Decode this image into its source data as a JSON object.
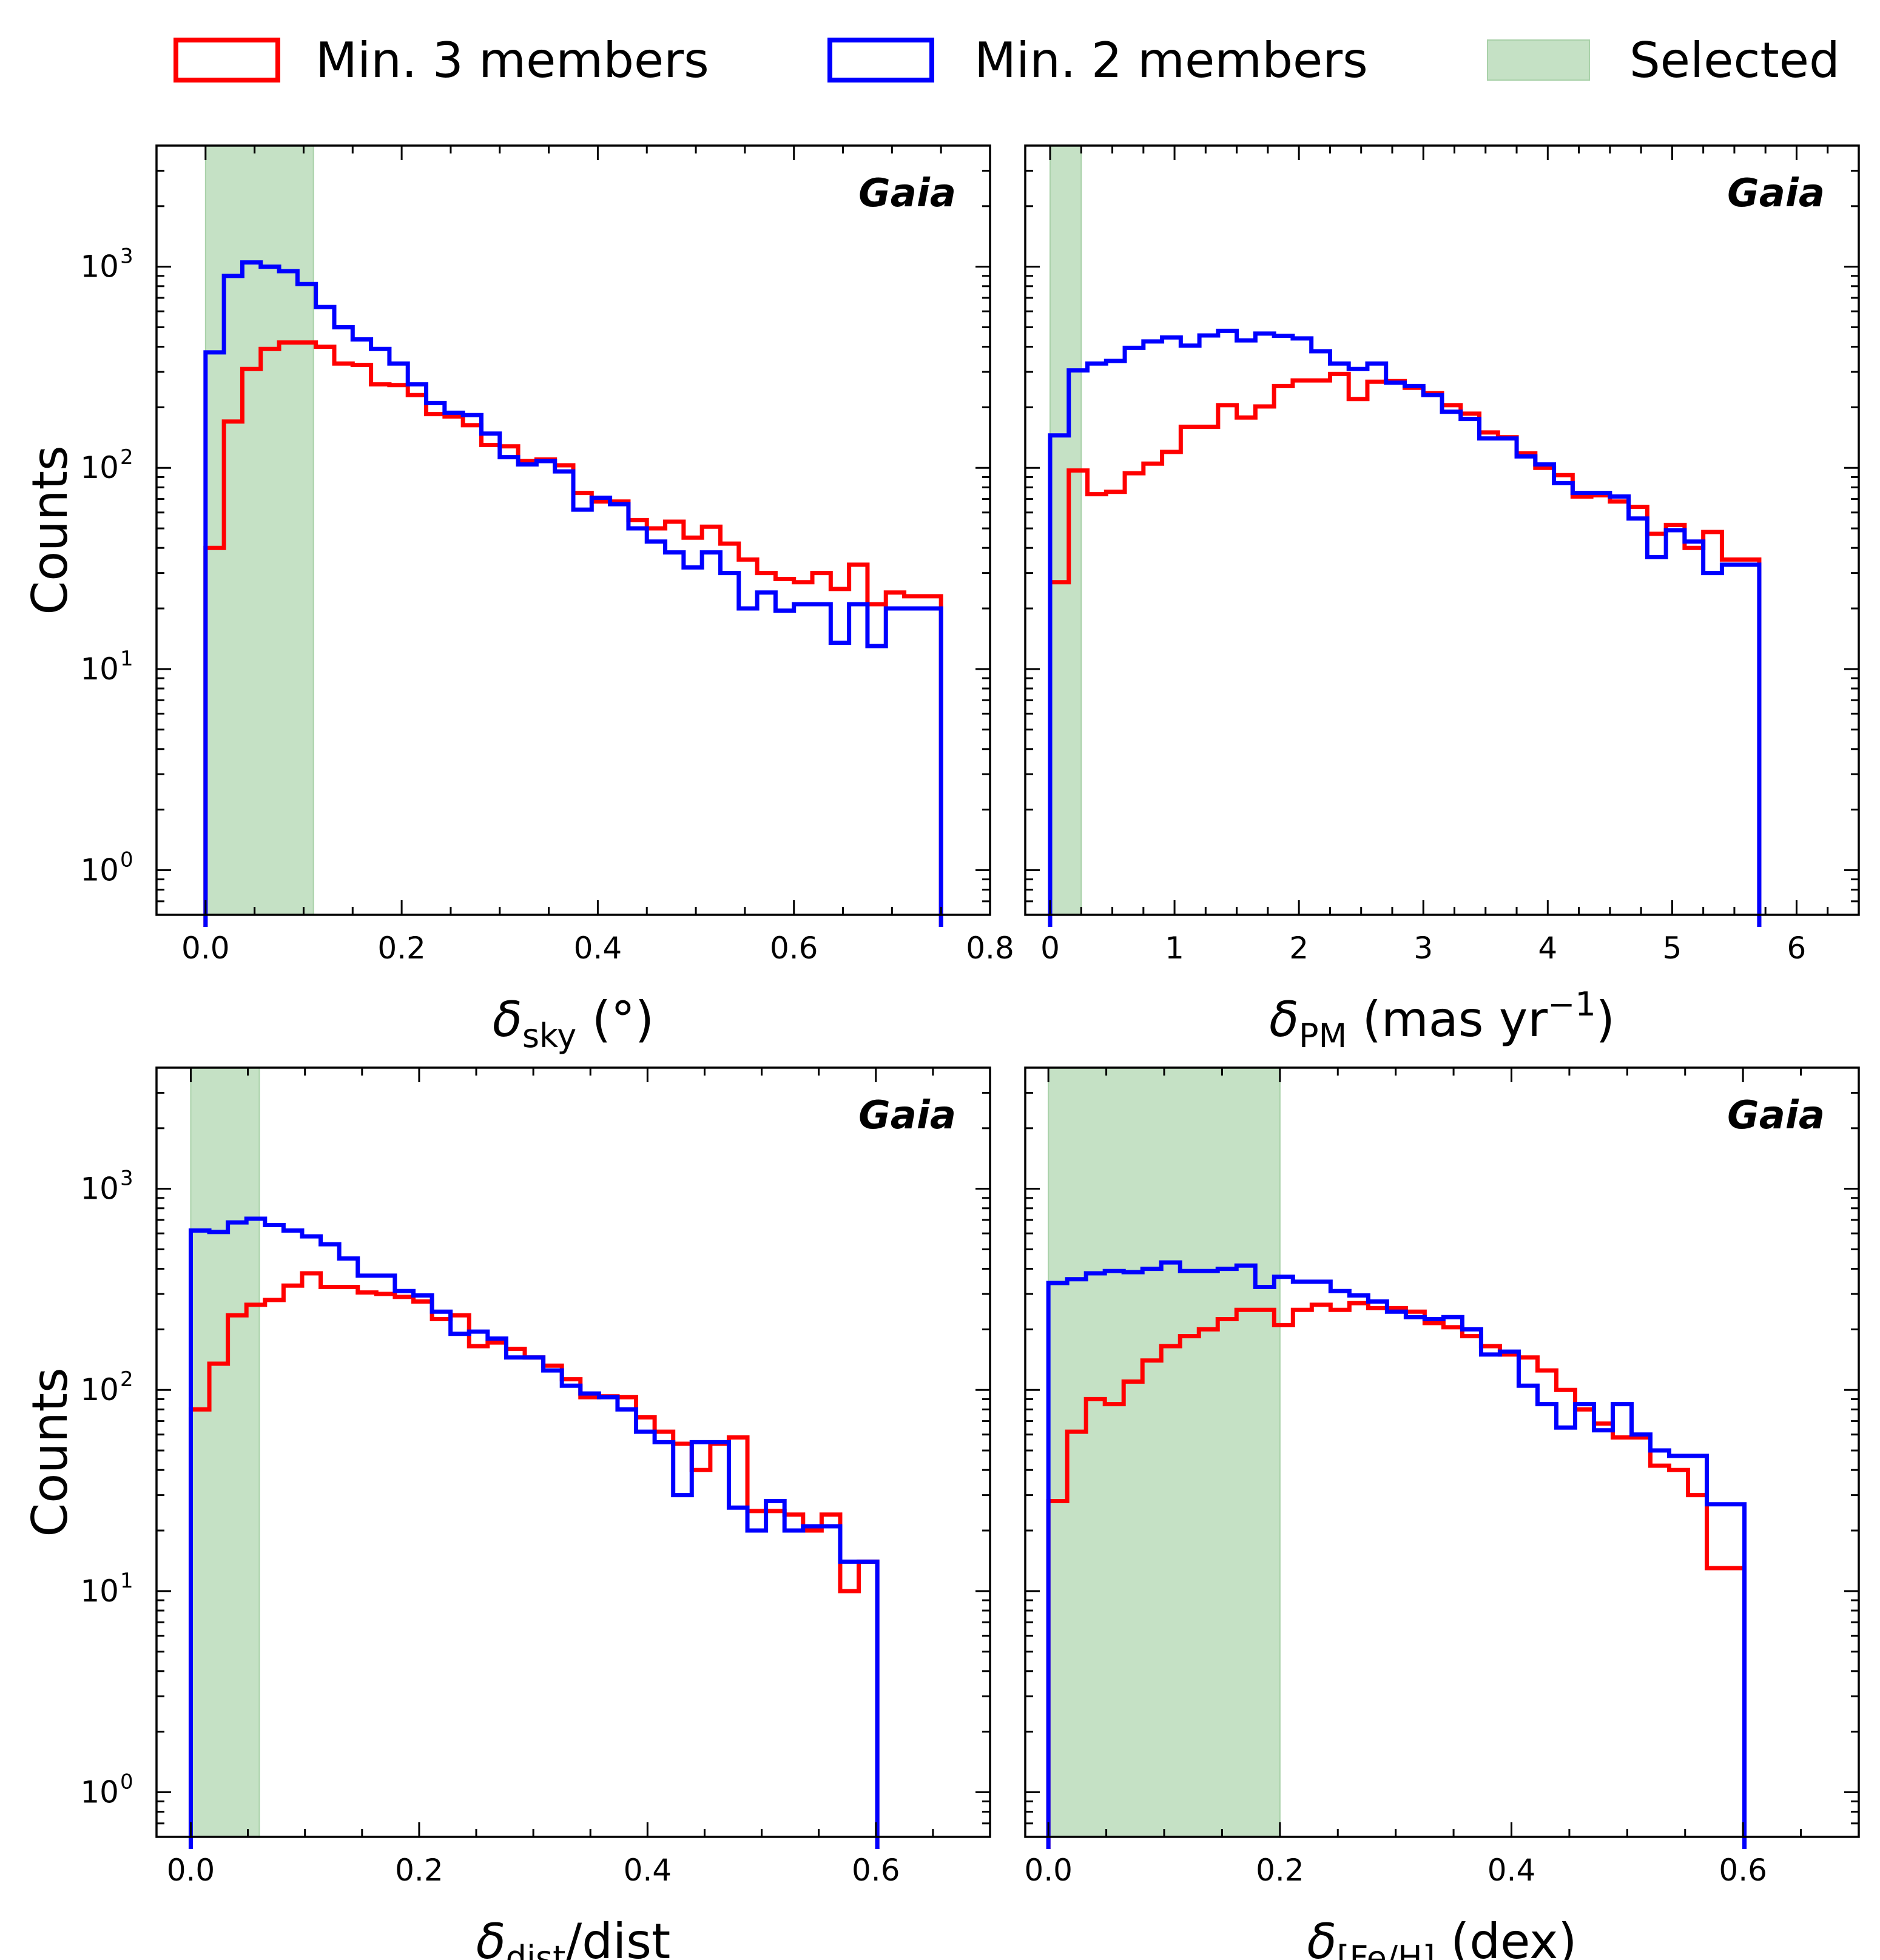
{
  "legend": {
    "entries": [
      {
        "label": "Min. 3 members",
        "color": "#ff0000",
        "kind": "line"
      },
      {
        "label": "Min. 2 members",
        "color": "#0000ff",
        "kind": "line"
      },
      {
        "label": "Selected",
        "color": "#c5e1c5",
        "kind": "patch"
      }
    ],
    "position": "top"
  },
  "chart_data": [
    {
      "type": "histogram",
      "id": "sky",
      "annotation": "Gaia",
      "xlabel": {
        "main": "δ",
        "sub": "sky",
        "rest": " (°)"
      },
      "ylabel": "Counts",
      "yscale": "log",
      "xlim": [
        -0.05,
        0.8
      ],
      "ylim": [
        0.6,
        4000
      ],
      "xticks": [
        0.0,
        0.2,
        0.4,
        0.6,
        0.8
      ],
      "xtick_labels": [
        "0.0",
        "0.2",
        "0.4",
        "0.6",
        "0.8"
      ],
      "yticks": [
        1,
        10,
        100,
        1000
      ],
      "ytick_labels": [
        {
          "base": "10",
          "exp": "0"
        },
        {
          "base": "10",
          "exp": "1"
        },
        {
          "base": "10",
          "exp": "2"
        },
        {
          "base": "10",
          "exp": "3"
        }
      ],
      "show_ylabels": true,
      "selected_range": [
        0.0,
        0.11
      ],
      "bin_start": 0.0,
      "bin_width": 0.01875,
      "series": [
        {
          "name": "Min. 3 members",
          "color": "#ff0000",
          "values": [
            40,
            170,
            310,
            390,
            420,
            420,
            400,
            330,
            325,
            260,
            258,
            230,
            185,
            180,
            163,
            130,
            128,
            108,
            110,
            103,
            75,
            68,
            68,
            55,
            50,
            54,
            45,
            51,
            42,
            35,
            30,
            28,
            27,
            30,
            25,
            33,
            21,
            24,
            23,
            23
          ]
        },
        {
          "name": "Min. 2 members",
          "color": "#0000ff",
          "values": [
            375,
            900,
            1050,
            1000,
            950,
            820,
            630,
            500,
            435,
            390,
            330,
            260,
            210,
            188,
            183,
            148,
            113,
            104,
            108,
            96,
            62,
            71,
            66,
            50,
            43,
            38,
            32,
            38,
            30,
            20,
            24,
            19.5,
            21,
            21,
            13.5,
            21,
            13,
            20,
            20,
            20
          ]
        }
      ]
    },
    {
      "type": "histogram",
      "id": "pm",
      "annotation": "Gaia",
      "xlabel": {
        "main": "δ",
        "sub": "PM",
        "rest": " (mas yr",
        "sup": "−1",
        "end": ")"
      },
      "yscale": "log",
      "xlim": [
        -0.2,
        6.5
      ],
      "ylim": [
        0.6,
        4000
      ],
      "xticks": [
        0,
        1,
        2,
        3,
        4,
        5,
        6
      ],
      "xtick_labels": [
        "0",
        "1",
        "2",
        "3",
        "4",
        "5",
        "6"
      ],
      "yticks": [
        1,
        10,
        100,
        1000
      ],
      "show_ylabels": false,
      "selected_range": [
        0.0,
        0.25
      ],
      "bin_start": 0.0,
      "bin_width": 0.15,
      "series": [
        {
          "name": "Min. 3 members",
          "color": "#ff0000",
          "values": [
            27,
            97,
            74,
            76,
            94,
            105,
            120,
            160,
            160,
            205,
            178,
            202,
            255,
            272,
            272,
            293,
            220,
            268,
            270,
            250,
            235,
            205,
            186,
            150,
            142,
            118,
            100,
            92,
            72,
            73,
            68,
            64,
            47,
            52,
            40,
            48,
            35,
            35
          ]
        },
        {
          "name": "Min. 2 members",
          "color": "#0000ff",
          "values": [
            145,
            305,
            330,
            340,
            395,
            425,
            445,
            405,
            455,
            480,
            430,
            465,
            453,
            440,
            380,
            330,
            310,
            330,
            265,
            255,
            230,
            190,
            175,
            140,
            140,
            114,
            104,
            84,
            75,
            75,
            72,
            56,
            36,
            49,
            43,
            30,
            33,
            33
          ]
        }
      ]
    },
    {
      "type": "histogram",
      "id": "dist",
      "annotation": "Gaia",
      "xlabel": {
        "main": "δ",
        "sub": "dist",
        "rest": "/dist"
      },
      "ylabel": "Counts",
      "yscale": "log",
      "xlim": [
        -0.03,
        0.7
      ],
      "ylim": [
        0.6,
        4000
      ],
      "xticks": [
        0.0,
        0.2,
        0.4,
        0.6
      ],
      "xtick_labels": [
        "0.0",
        "0.2",
        "0.4",
        "0.6"
      ],
      "yticks": [
        1,
        10,
        100,
        1000
      ],
      "ytick_labels": [
        {
          "base": "10",
          "exp": "0"
        },
        {
          "base": "10",
          "exp": "1"
        },
        {
          "base": "10",
          "exp": "2"
        },
        {
          "base": "10",
          "exp": "3"
        }
      ],
      "show_ylabels": true,
      "selected_range": [
        0.0,
        0.06
      ],
      "bin_start": 0.0,
      "bin_width": 0.01625,
      "series": [
        {
          "name": "Min. 3 members",
          "color": "#ff0000",
          "values": [
            80,
            135,
            235,
            265,
            280,
            330,
            380,
            325,
            325,
            305,
            300,
            290,
            275,
            225,
            235,
            165,
            172,
            160,
            145,
            132,
            113,
            92,
            93,
            92,
            73,
            62,
            54,
            40,
            54,
            58,
            25,
            25,
            24,
            20,
            24,
            10,
            14
          ]
        },
        {
          "name": "Min. 2 members",
          "color": "#0000ff",
          "values": [
            620,
            610,
            680,
            710,
            660,
            620,
            580,
            530,
            450,
            370,
            370,
            310,
            295,
            245,
            190,
            195,
            180,
            145,
            145,
            125,
            105,
            96,
            92,
            80,
            62,
            55,
            30,
            55,
            55,
            26,
            20,
            28,
            20,
            21,
            21,
            14,
            14
          ]
        }
      ]
    },
    {
      "type": "histogram",
      "id": "feh",
      "annotation": "Gaia",
      "xlabel": {
        "main": "δ",
        "sub": "[Fe/H]",
        "rest": " (dex)"
      },
      "yscale": "log",
      "xlim": [
        -0.02,
        0.7
      ],
      "ylim": [
        0.6,
        4000
      ],
      "xticks": [
        0.0,
        0.2,
        0.4,
        0.6
      ],
      "xtick_labels": [
        "0.0",
        "0.2",
        "0.4",
        "0.6"
      ],
      "yticks": [
        1,
        10,
        100,
        1000
      ],
      "show_ylabels": false,
      "selected_range": [
        0.0,
        0.2
      ],
      "bin_start": 0.0,
      "bin_width": 0.01625,
      "series": [
        {
          "name": "Min. 3 members",
          "color": "#ff0000",
          "values": [
            28,
            62,
            90,
            85,
            110,
            140,
            165,
            185,
            200,
            225,
            250,
            250,
            210,
            250,
            265,
            250,
            270,
            255,
            255,
            245,
            215,
            205,
            185,
            165,
            150,
            145,
            125,
            100,
            80,
            68,
            58,
            58,
            42,
            40,
            30,
            13,
            13
          ]
        },
        {
          "name": "Min. 2 members",
          "color": "#0000ff",
          "values": [
            340,
            355,
            380,
            390,
            385,
            400,
            430,
            390,
            390,
            400,
            415,
            325,
            365,
            345,
            345,
            310,
            295,
            275,
            245,
            230,
            225,
            230,
            200,
            150,
            155,
            105,
            85,
            65,
            85,
            63,
            85,
            60,
            50,
            47,
            47,
            27,
            27
          ]
        }
      ]
    }
  ]
}
